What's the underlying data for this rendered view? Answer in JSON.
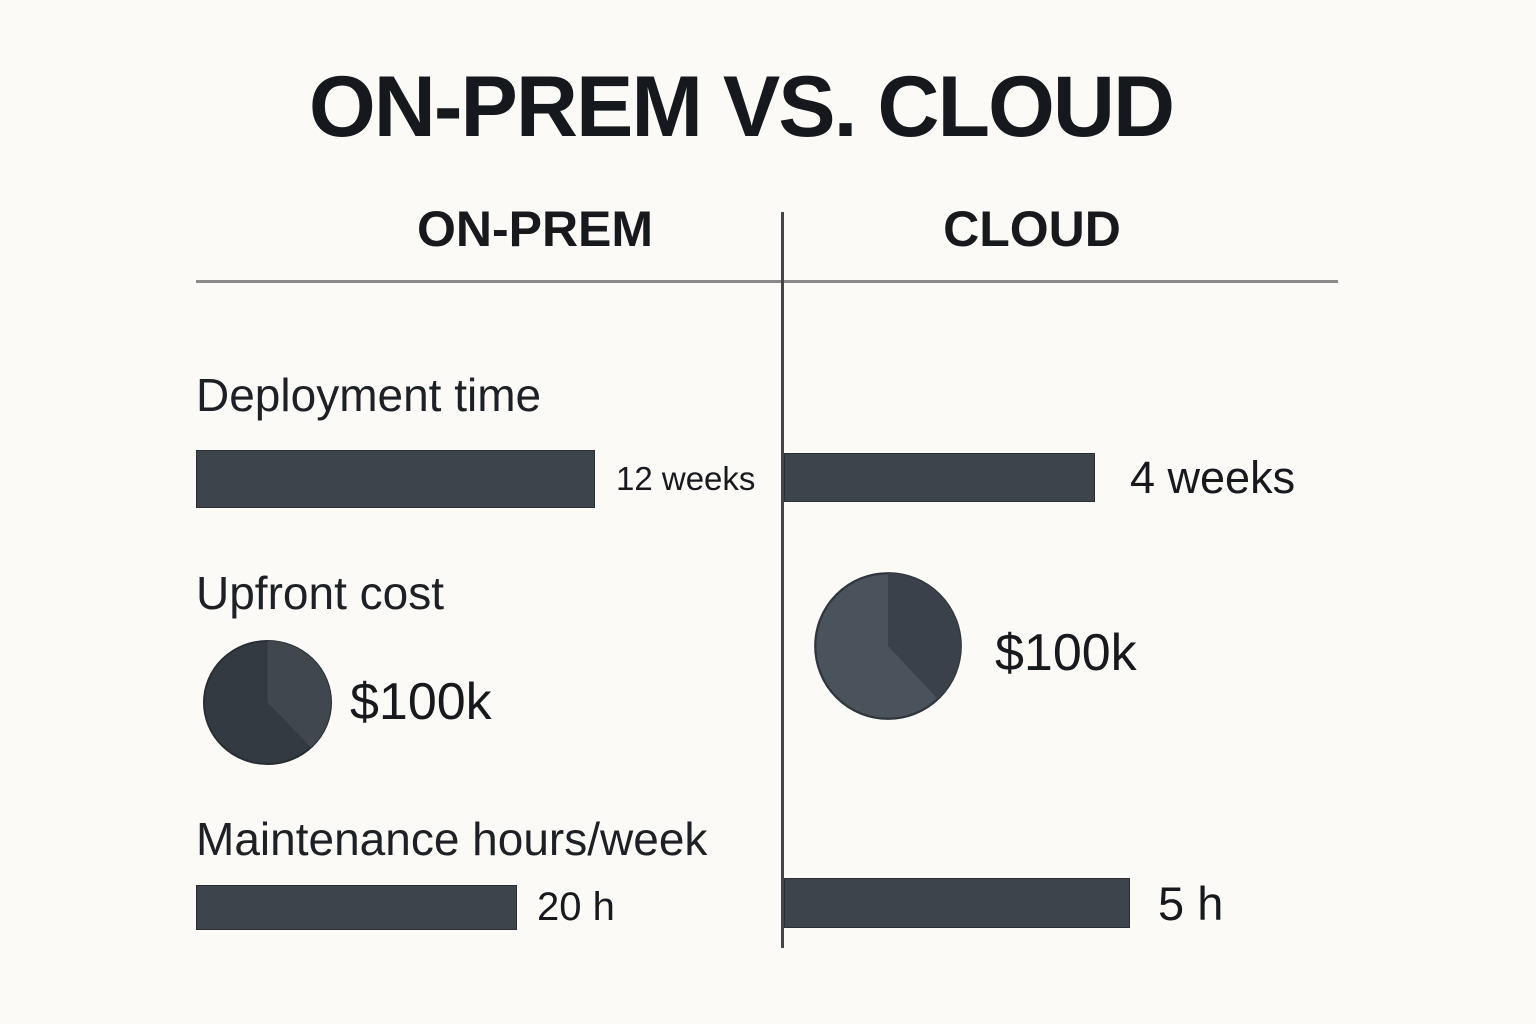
{
  "title": "ON-PREM VS. CLOUD",
  "columns": {
    "left": "ON-PREM",
    "right": "CLOUD"
  },
  "rows": {
    "deployment": {
      "label": "Deployment time",
      "on_prem_value": "12 weeks",
      "cloud_value": "4 weeks"
    },
    "cost": {
      "label": "Upfront cost",
      "on_prem_value": "$100k",
      "cloud_value": "$100k"
    },
    "maintenance": {
      "label": "Maintenance hours/week",
      "on_prem_value": "20 h",
      "cloud_value": "5 h"
    }
  },
  "pies": {
    "on_prem": {
      "fraction": 0.38,
      "base": "#333a41",
      "wedge": "#40474f",
      "rim": "#282d33"
    },
    "cloud": {
      "fraction": 0.38,
      "base": "#4a525b",
      "wedge": "#3a414a",
      "rim": "#30363d"
    }
  },
  "colors": {
    "background": "#fbfaf7",
    "text": "#17191d",
    "bar_fill": "#3e444b",
    "divider_vertical": "#42464a",
    "divider_horizontal": "#8a8a8a"
  },
  "chart_data": {
    "type": "table",
    "title": "ON-PREM VS. CLOUD",
    "columns": [
      "ON-PREM",
      "CLOUD"
    ],
    "metrics": [
      {
        "name": "Deployment time",
        "unit": "weeks",
        "on_prem": 12,
        "cloud": 4,
        "on_prem_label": "12 weeks",
        "cloud_label": "4 weeks",
        "viz": "bar"
      },
      {
        "name": "Upfront cost",
        "unit": "USD",
        "on_prem": 100000,
        "cloud": 100000,
        "on_prem_label": "$100k",
        "cloud_label": "$100k",
        "viz": "pie"
      },
      {
        "name": "Maintenance hours/week",
        "unit": "hours/week",
        "on_prem": 20,
        "cloud": 5,
        "on_prem_label": "20 h",
        "cloud_label": "5 h",
        "viz": "bar"
      }
    ],
    "layout": {
      "grid": false,
      "legend": false,
      "two_column_comparison": true
    }
  }
}
